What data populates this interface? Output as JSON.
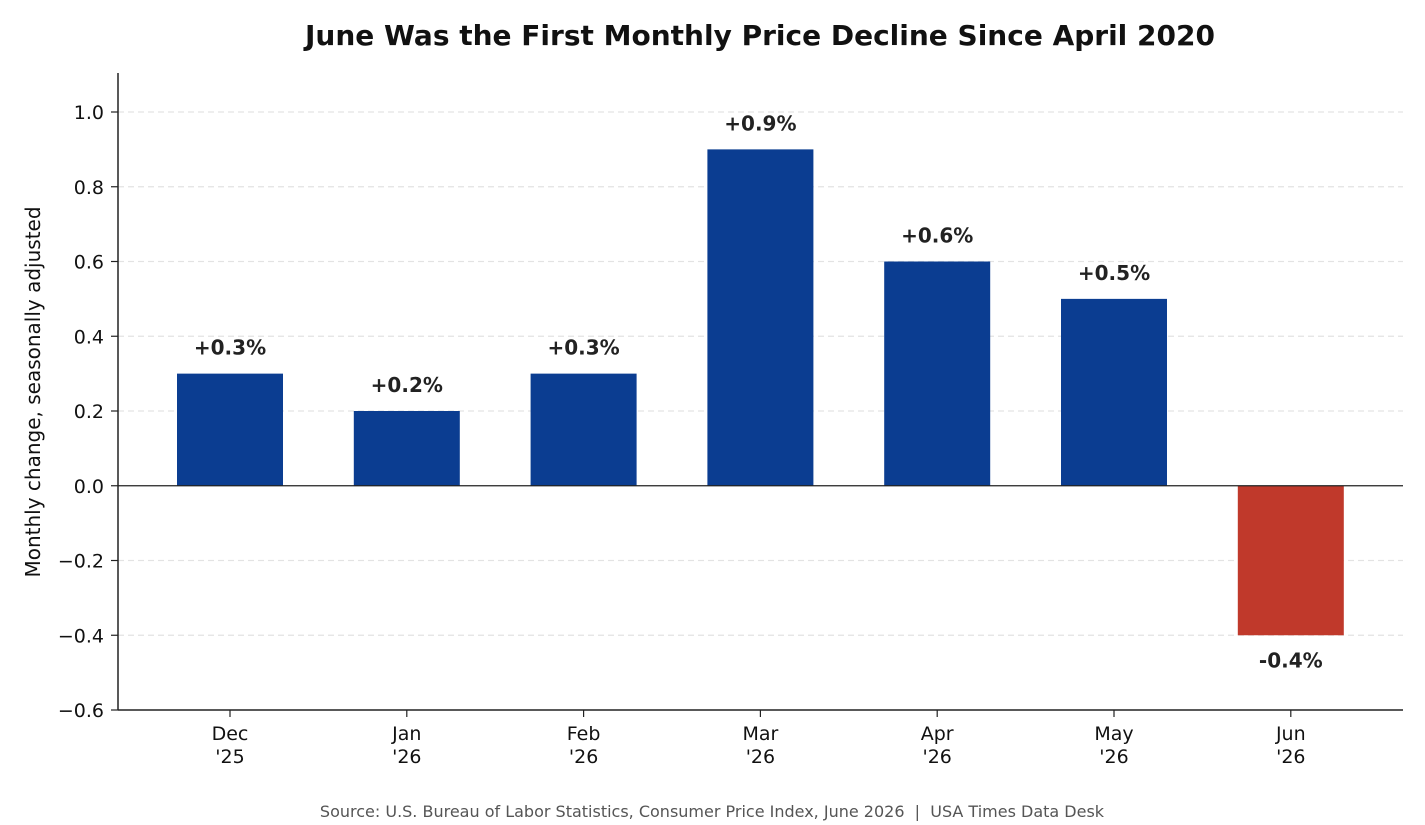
{
  "chart_data": {
    "type": "bar",
    "title": "June Was the First Monthly Price Decline Since April 2020",
    "xlabel": "",
    "ylabel": "Monthly change, seasonally adjusted",
    "ylim": [
      -0.6,
      1.1
    ],
    "yticks": [
      "1.0",
      "0.8",
      "0.6",
      "0.4",
      "0.2",
      "0.0",
      "−0.2",
      "−0.4",
      "−0.6"
    ],
    "ytick_values": [
      1.0,
      0.8,
      0.6,
      0.4,
      0.2,
      0.0,
      -0.2,
      -0.4,
      -0.6
    ],
    "categories": [
      [
        "Dec",
        "'25"
      ],
      [
        "Jan",
        "'26"
      ],
      [
        "Feb",
        "'26"
      ],
      [
        "Mar",
        "'26"
      ],
      [
        "Apr",
        "'26"
      ],
      [
        "May",
        "'26"
      ],
      [
        "Jun",
        "'26"
      ]
    ],
    "values": [
      0.3,
      0.2,
      0.3,
      0.9,
      0.6,
      0.5,
      -0.4
    ],
    "data_labels": [
      "+0.3%",
      "+0.2%",
      "+0.3%",
      "+0.9%",
      "+0.6%",
      "+0.5%",
      "-0.4%"
    ],
    "grid": "horizontal dashed",
    "colors": {
      "positive": "#0b3d91",
      "negative": "#c0392b",
      "grid": "#e3e3e3",
      "axis": "#222222"
    },
    "source": "Source: U.S. Bureau of Labor Statistics, Consumer Price Index, June 2026  |  USA Times Data Desk"
  }
}
